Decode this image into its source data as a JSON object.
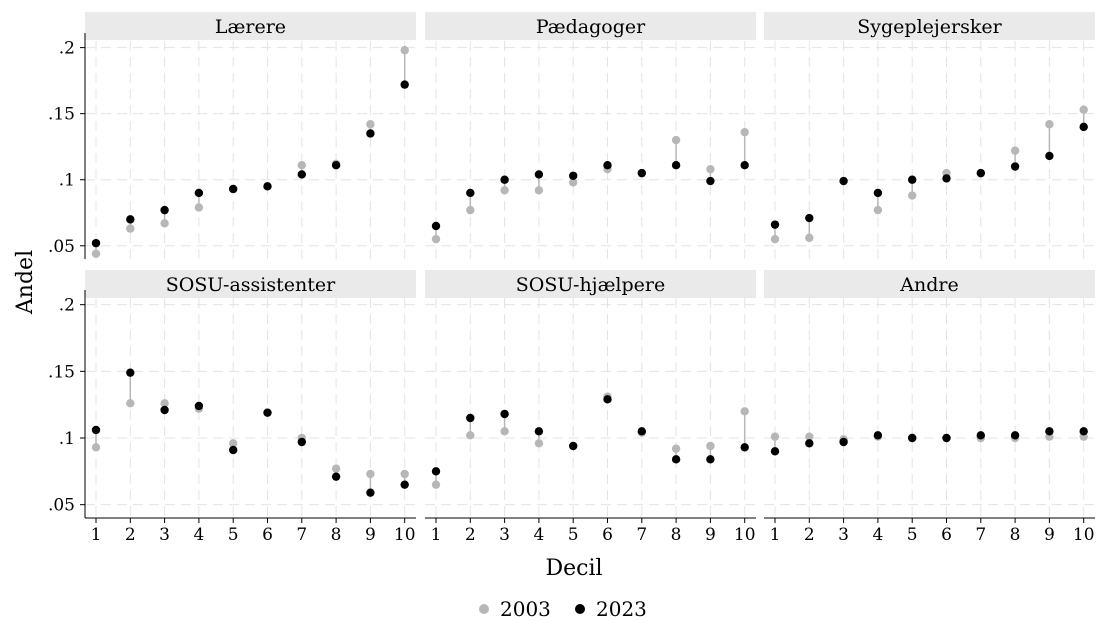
{
  "chart_data": {
    "type": "scatter",
    "xlabel": "Decil",
    "ylabel": "Andel",
    "x": [
      1,
      2,
      3,
      4,
      5,
      6,
      7,
      8,
      9,
      10
    ],
    "x_tick_labels": [
      "1",
      "2",
      "3",
      "4",
      "5",
      "6",
      "7",
      "8",
      "9",
      "10"
    ],
    "y_ticks": [
      0.05,
      0.1,
      0.15,
      0.2
    ],
    "y_tick_labels": [
      ".05",
      ".1",
      ".15",
      ".2"
    ],
    "ylim": [
      0.04,
      0.205
    ],
    "grid": true,
    "legend_position": "bottom",
    "series_styles": [
      {
        "name": "2003",
        "color": "#b7b7b7"
      },
      {
        "name": "2023",
        "color": "#000000"
      }
    ],
    "connector_color": "#b7b7b7",
    "panels": [
      {
        "title": "Lærere",
        "series": [
          {
            "name": "2003",
            "values": [
              0.044,
              0.063,
              0.067,
              0.079,
              0.093,
              0.095,
              0.111,
              0.112,
              0.142,
              0.198
            ]
          },
          {
            "name": "2023",
            "values": [
              0.052,
              0.07,
              0.077,
              0.09,
              0.093,
              0.095,
              0.104,
              0.111,
              0.135,
              0.172
            ]
          }
        ]
      },
      {
        "title": "Pædagoger",
        "series": [
          {
            "name": "2003",
            "values": [
              0.055,
              0.077,
              0.092,
              0.092,
              0.098,
              0.108,
              0.105,
              0.13,
              0.108,
              0.136
            ]
          },
          {
            "name": "2023",
            "values": [
              0.065,
              0.09,
              0.1,
              0.104,
              0.103,
              0.111,
              0.105,
              0.111,
              0.099,
              0.111
            ]
          }
        ]
      },
      {
        "title": "Sygeplejersker",
        "series": [
          {
            "name": "2003",
            "values": [
              0.055,
              0.056,
              0.099,
              0.077,
              0.088,
              0.105,
              0.105,
              0.122,
              0.142,
              0.153
            ]
          },
          {
            "name": "2023",
            "values": [
              0.066,
              0.071,
              0.099,
              0.09,
              0.1,
              0.101,
              0.105,
              0.11,
              0.118,
              0.14
            ]
          }
        ]
      },
      {
        "title": "SOSU-assistenter",
        "series": [
          {
            "name": "2003",
            "values": [
              0.093,
              0.126,
              0.126,
              0.122,
              0.096,
              0.119,
              0.1,
              0.077,
              0.073,
              0.073
            ]
          },
          {
            "name": "2023",
            "values": [
              0.106,
              0.149,
              0.121,
              0.124,
              0.091,
              0.119,
              0.097,
              0.071,
              0.059,
              0.065
            ]
          }
        ]
      },
      {
        "title": "SOSU-hjælpere",
        "series": [
          {
            "name": "2003",
            "values": [
              0.065,
              0.102,
              0.105,
              0.096,
              0.094,
              0.131,
              0.104,
              0.092,
              0.094,
              0.12
            ]
          },
          {
            "name": "2023",
            "values": [
              0.075,
              0.115,
              0.118,
              0.105,
              0.094,
              0.129,
              0.105,
              0.084,
              0.084,
              0.093
            ]
          }
        ]
      },
      {
        "title": "Andre",
        "series": [
          {
            "name": "2003",
            "values": [
              0.101,
              0.101,
              0.099,
              0.101,
              0.1,
              0.1,
              0.1,
              0.1,
              0.101,
              0.101
            ]
          },
          {
            "name": "2023",
            "values": [
              0.09,
              0.096,
              0.097,
              0.102,
              0.1,
              0.1,
              0.102,
              0.102,
              0.105,
              0.105
            ]
          }
        ]
      }
    ]
  }
}
